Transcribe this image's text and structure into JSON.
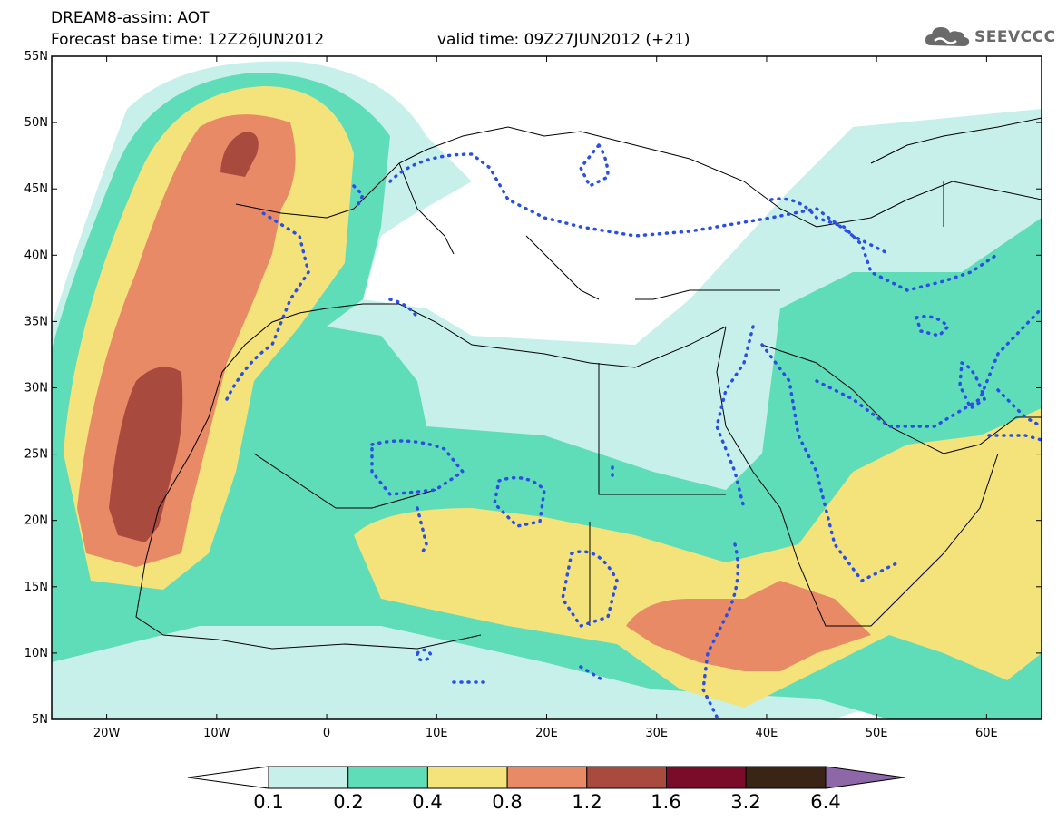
{
  "header": {
    "title": "DREAM8-assim: AOT",
    "base_time": "Forecast base time: 12Z26JUN2012",
    "valid_time": "valid time: 09Z27JUN2012 (+21)",
    "logo_text": "SEEVCCC"
  },
  "map": {
    "region": "North Africa, Europe and Middle East",
    "lon_range": [
      -25,
      65
    ],
    "lat_range": [
      5,
      55
    ],
    "lat_labels": [
      "55N",
      "50N",
      "45N",
      "40N",
      "35N",
      "30N",
      "25N",
      "20N",
      "15N",
      "10N",
      "5N"
    ],
    "lon_labels": [
      "20W",
      "10W",
      "0",
      "10E",
      "20E",
      "30E",
      "40E",
      "50E",
      "60E"
    ],
    "contour_style": "dotted blue contours over shaded AOT levels"
  },
  "colorbar": {
    "levels": [
      "0.1",
      "0.2",
      "0.4",
      "0.8",
      "1.2",
      "1.6",
      "3.2",
      "6.4"
    ],
    "colors": {
      "below": "#ffffff",
      "l1": "#c8f0eb",
      "l2": "#5fdcb8",
      "l3": "#f3e37a",
      "l4": "#e98a67",
      "l5": "#a84b3e",
      "l6": "#7a0c2a",
      "l7": "#3a2416",
      "above": "#8d67a8"
    }
  }
}
